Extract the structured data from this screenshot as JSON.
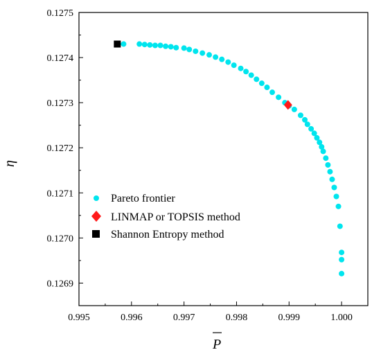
{
  "chart_data": {
    "type": "scatter",
    "title": "",
    "xlabel": "P",
    "ylabel": "η",
    "xlim": [
      0.995,
      1.0005
    ],
    "ylim": [
      0.12685,
      0.1275
    ],
    "xticks": [
      0.995,
      0.996,
      0.997,
      0.998,
      0.999,
      1.0
    ],
    "xtick_labels": [
      "0.995",
      "0.996",
      "0.997",
      "0.998",
      "0.999",
      "1.000"
    ],
    "yticks": [
      0.1269,
      0.127,
      0.1271,
      0.1272,
      0.1273,
      0.1274,
      0.1275
    ],
    "ytick_labels": [
      "0.1269",
      "0.1270",
      "0.1271",
      "0.1272",
      "0.1273",
      "0.1274",
      "0.1275"
    ],
    "grid": false,
    "legend_position": "bottom-left",
    "series": [
      {
        "name": "Pareto frontier",
        "marker": "circle",
        "color": "#00e5ee",
        "x": [
          0.99575,
          0.99585,
          0.99615,
          0.99625,
          0.99635,
          0.99645,
          0.99655,
          0.99665,
          0.99675,
          0.99685,
          0.997,
          0.9971,
          0.99722,
          0.99735,
          0.99748,
          0.9976,
          0.99772,
          0.99784,
          0.99795,
          0.99808,
          0.99818,
          0.99828,
          0.99838,
          0.99848,
          0.99858,
          0.99868,
          0.9988,
          0.99892,
          0.999,
          0.9991,
          0.99922,
          0.9993,
          0.99935,
          0.99942,
          0.99948,
          0.99953,
          0.99958,
          0.99962,
          0.99965,
          0.9997,
          0.99974,
          0.99978,
          0.99982,
          0.99986,
          0.9999,
          0.99994,
          0.99997,
          1.0,
          1.0,
          1.0
        ],
        "y": [
          0.12743,
          0.12743,
          0.12743,
          0.127429,
          0.127428,
          0.127427,
          0.127427,
          0.127425,
          0.127424,
          0.127422,
          0.127421,
          0.127418,
          0.127414,
          0.12741,
          0.127406,
          0.127401,
          0.127396,
          0.12739,
          0.127383,
          0.127376,
          0.127369,
          0.127361,
          0.127352,
          0.127343,
          0.127334,
          0.127323,
          0.127312,
          0.1273,
          0.127293,
          0.127285,
          0.127272,
          0.127262,
          0.127252,
          0.127242,
          0.127232,
          0.127222,
          0.127212,
          0.127202,
          0.127192,
          0.127177,
          0.127162,
          0.127147,
          0.12713,
          0.127112,
          0.127092,
          0.12707,
          0.127026,
          0.126968,
          0.126952,
          0.126921
        ]
      },
      {
        "name": "LINMAP or  TOPSIS method",
        "marker": "diamond",
        "color": "#ff1a1a",
        "x": [
          0.99898
        ],
        "y": [
          0.127295
        ]
      },
      {
        "name": "Shannon Entropy method",
        "marker": "square",
        "color": "#000000",
        "x": [
          0.99573
        ],
        "y": [
          0.12743
        ]
      }
    ]
  }
}
